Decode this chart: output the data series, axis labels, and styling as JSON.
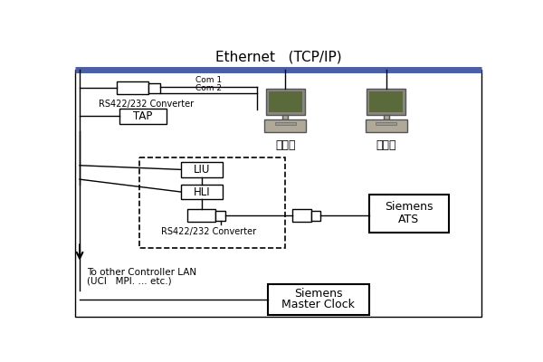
{
  "title": "Ethernet   (TCP/IP)",
  "background": "#ffffff",
  "ethernet_color": "#4b5fa6",
  "line_color": "#000000",
  "monitor_screen": "#5a6a3a",
  "monitor_body": "#b0a898",
  "labels": {
    "rs422_top": "RS422/232 Converter",
    "tap": "TAP",
    "com1": "Com 1",
    "com2": "Com 2",
    "workstation": "工作站",
    "backup": "备份站",
    "liu": "LIU",
    "hli": "HLI",
    "rs422_bottom": "RS422/232 Converter",
    "siemens_ats_line1": "Siemens",
    "siemens_ats_line2": "ATS",
    "to_other": "To other Controller LAN",
    "uci": "(UCI   MPI. … etc.)",
    "siemens_clock_line1": "Siemens",
    "siemens_clock_line2": "Master Clock"
  }
}
